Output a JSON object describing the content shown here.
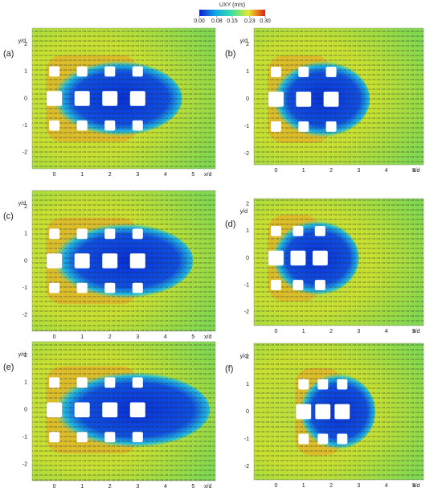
{
  "colorbar": {
    "title": "UXY (m/s)",
    "lim": [
      0,
      0.3
    ],
    "ticks": [
      {
        "value": 0,
        "label": "0.00"
      },
      {
        "value": 0.08,
        "label": "0.08"
      },
      {
        "value": 0.15,
        "label": "0.15"
      },
      {
        "value": 0.23,
        "label": "0.23"
      },
      {
        "value": 0.3,
        "label": "0.30"
      }
    ]
  },
  "panels": [
    {
      "label": "(a)",
      "xlabel": "x/d",
      "ylabel": "y/d",
      "xlim": [
        -0.8,
        5.8
      ],
      "ylim": [
        -2.6,
        2.6
      ],
      "xticks": [
        0,
        1,
        2,
        3,
        4,
        5
      ],
      "yticks": [
        -2,
        -1,
        0,
        1,
        2
      ]
    },
    {
      "label": "(b)",
      "xlabel": "x/d",
      "ylabel": "y/d",
      "xlim": [
        -0.8,
        5.35
      ],
      "ylim": [
        -2.4,
        2.6
      ],
      "xticks": [
        0,
        1,
        2,
        3,
        4,
        5
      ],
      "yticks": [
        -2,
        -1,
        0,
        1,
        2
      ]
    },
    {
      "label": "(c)",
      "xlabel": "x/d",
      "ylabel": "y/d",
      "xlim": [
        -0.8,
        5.8
      ],
      "ylim": [
        -2.6,
        2.6
      ],
      "xticks": [
        0,
        1,
        2,
        3,
        4,
        5
      ],
      "yticks": [
        -2,
        -1,
        0,
        1,
        2
      ]
    },
    {
      "label": "(d)",
      "xlabel": "x/d",
      "ylabel": "y/d",
      "xlim": [
        -0.8,
        5.35
      ],
      "ylim": [
        -2.5,
        2.2
      ],
      "xticks": [
        0,
        1,
        2,
        3,
        4,
        5
      ],
      "yticks": [
        -2,
        -1,
        0,
        1,
        2
      ]
    },
    {
      "label": "(e)",
      "xlabel": "x/d",
      "ylabel": "y/d",
      "xlim": [
        -0.8,
        5.8
      ],
      "ylim": [
        -2.6,
        2.5
      ],
      "xticks": [
        0,
        1,
        2,
        3,
        4,
        5
      ],
      "yticks": [
        -2,
        -1,
        0,
        1,
        2
      ]
    },
    {
      "label": "(f)",
      "xlabel": "x/d",
      "ylabel": "y/d",
      "xlim": [
        -0.8,
        5.35
      ],
      "ylim": [
        -2.5,
        2.5
      ],
      "xticks": [
        0,
        1,
        2,
        3,
        4,
        5
      ],
      "yticks": [
        -2,
        -1,
        0,
        1,
        2
      ]
    }
  ]
}
